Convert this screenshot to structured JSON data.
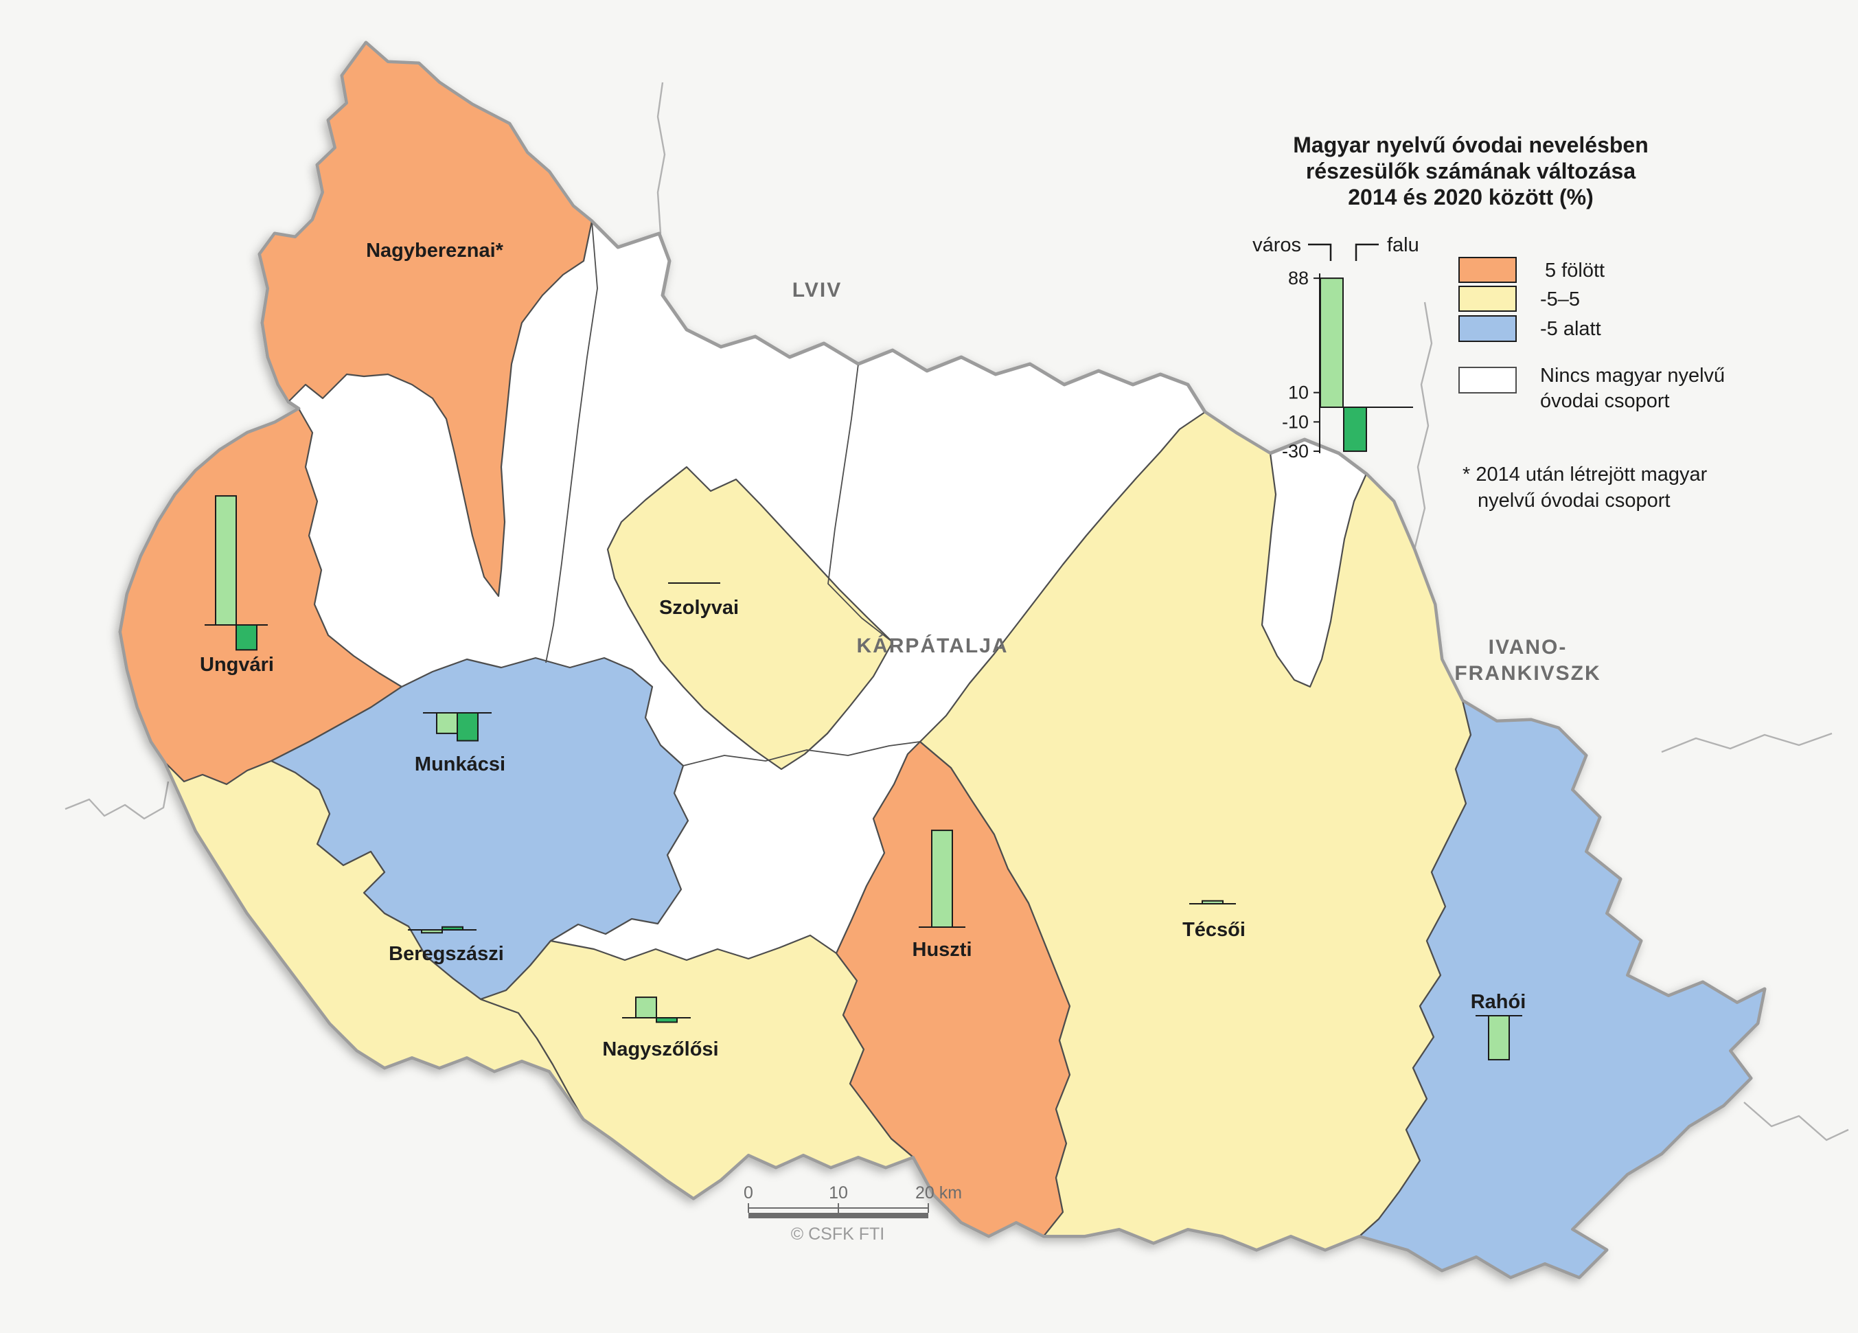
{
  "title": {
    "lines": [
      "Magyar nyelvű óvodai nevelésben",
      "részesülők számának változása",
      "2014 és 2020 között (%)"
    ]
  },
  "legend": {
    "group_labels": {
      "varos": "város",
      "falu": "falu"
    },
    "example_scale": {
      "ticks": [
        "88",
        "10",
        "-10",
        "-30"
      ],
      "tick_values": [
        88,
        10,
        -10,
        -30
      ],
      "varos_value": 88,
      "falu_value": -30
    },
    "classes": [
      {
        "id": "over5",
        "label": "5 fölött",
        "color": "#F8A873"
      },
      {
        "id": "mid",
        "label": "-5–5",
        "color": "#FBF1B2"
      },
      {
        "id": "under5",
        "label": "-5 alatt",
        "color": "#A2C2E8"
      },
      {
        "id": "none",
        "label": "Nincs magyar nyelvű óvodai csoport",
        "label_lines": [
          "Nincs magyar nyelvű",
          "óvodai csoport"
        ],
        "color": "#FFFFFF"
      }
    ],
    "footnote_lines": [
      "* 2014 után létrejött magyar",
      "nyelvű óvodai csoport"
    ]
  },
  "region_labels": [
    {
      "id": "lviv",
      "text": "LVIV"
    },
    {
      "id": "karpatalja",
      "text": "KÁRPÁTALJA"
    },
    {
      "id": "ivano-frankivszk",
      "lines": [
        "IVANO-",
        "FRANKIVSZK"
      ]
    }
  ],
  "districts": [
    {
      "id": "nagybereznai",
      "name": "Nagybereznai*",
      "class": "5 fölött",
      "varos": null,
      "falu": null
    },
    {
      "id": "ungvari",
      "name": "Ungvári",
      "class": "5 fölött",
      "varos": 88,
      "falu": -17
    },
    {
      "id": "munkacsi",
      "name": "Munkácsi",
      "class": "-5 alatt",
      "varos": -14,
      "falu": -19
    },
    {
      "id": "szolyvai",
      "name": "Szolyvai",
      "class": "-5–5",
      "varos": 0,
      "falu": 0
    },
    {
      "id": "beregszaszi",
      "name": "Beregszászi",
      "class": "-5–5",
      "varos": -2,
      "falu": 2
    },
    {
      "id": "nagyszolosi",
      "name": "Nagyszőlősi",
      "class": "-5–5",
      "varos": 14,
      "falu": -3
    },
    {
      "id": "huszti",
      "name": "Huszti",
      "class": "5 fölött",
      "varos": 66,
      "falu": null
    },
    {
      "id": "tecsoi",
      "name": "Técsői",
      "class": "-5–5",
      "varos": 2,
      "falu": null
    },
    {
      "id": "rahoi",
      "name": "Rahói",
      "class": "-5 alatt",
      "varos": -30,
      "falu": null
    }
  ],
  "chart_data": {
    "type": "bar",
    "title": "Magyar nyelvű óvodai nevelésben részesülők számának változása 2014 és 2020 között (%)",
    "unit": "%",
    "categories": [
      "Nagybereznai*",
      "Ungvári",
      "Munkácsi",
      "Szolyvai",
      "Beregszászi",
      "Nagyszőlősi",
      "Huszti",
      "Técsői",
      "Rahói"
    ],
    "series": [
      {
        "name": "város",
        "color": "#A6E29F",
        "values": [
          null,
          88,
          -14,
          0,
          -2,
          14,
          66,
          2,
          -30
        ]
      },
      {
        "name": "falu",
        "color": "#2EB564",
        "values": [
          null,
          -17,
          -19,
          0,
          2,
          -3,
          null,
          null,
          null
        ]
      }
    ],
    "ylim": [
      -30,
      88
    ],
    "axis_ticks": [
      88,
      10,
      -10,
      -30
    ],
    "legend_position": "top-right",
    "note": "* 2014 után létrejött magyar nyelvű óvodai csoport"
  },
  "scale_bar": {
    "ticks": [
      "0",
      "10",
      "20 km"
    ],
    "credit": "© CSFK FTI"
  }
}
